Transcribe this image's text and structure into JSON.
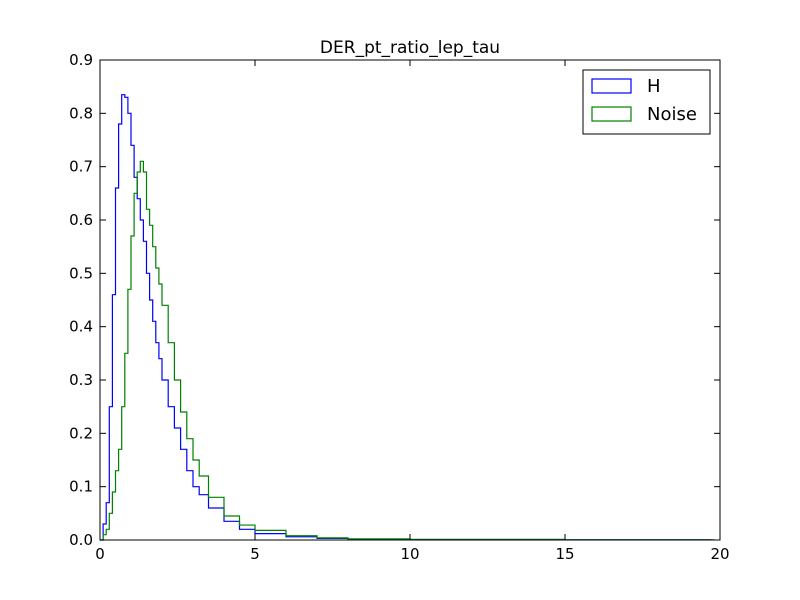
{
  "chart_data": {
    "type": "histogram-step",
    "title": "DER_pt_ratio_lep_tau",
    "xlabel": "",
    "ylabel": "",
    "xlim": [
      0,
      20
    ],
    "ylim": [
      0,
      0.9
    ],
    "xticks": [
      0,
      5,
      10,
      15,
      20
    ],
    "xtick_labels": [
      "0",
      "5",
      "10",
      "15",
      "20"
    ],
    "yticks": [
      0,
      0.1,
      0.2,
      0.3,
      0.4,
      0.5,
      0.6,
      0.7,
      0.8,
      0.9
    ],
    "ytick_labels": [
      "0.0",
      "0.1",
      "0.2",
      "0.3",
      "0.4",
      "0.5",
      "0.6",
      "0.7",
      "0.8",
      "0.9"
    ],
    "grid": false,
    "legend_position": "top-right",
    "series": [
      {
        "name": "H",
        "color": "#0000ff",
        "points": [
          [
            0,
            0
          ],
          [
            0.1,
            0.03
          ],
          [
            0.2,
            0.07
          ],
          [
            0.3,
            0.25
          ],
          [
            0.4,
            0.46
          ],
          [
            0.5,
            0.66
          ],
          [
            0.6,
            0.78
          ],
          [
            0.7,
            0.835
          ],
          [
            0.8,
            0.83
          ],
          [
            0.9,
            0.8
          ],
          [
            1.0,
            0.74
          ],
          [
            1.1,
            0.68
          ],
          [
            1.2,
            0.64
          ],
          [
            1.3,
            0.6
          ],
          [
            1.4,
            0.56
          ],
          [
            1.5,
            0.5
          ],
          [
            1.6,
            0.45
          ],
          [
            1.7,
            0.41
          ],
          [
            1.8,
            0.37
          ],
          [
            1.9,
            0.34
          ],
          [
            2.0,
            0.3
          ],
          [
            2.2,
            0.25
          ],
          [
            2.4,
            0.21
          ],
          [
            2.6,
            0.17
          ],
          [
            2.8,
            0.13
          ],
          [
            3.0,
            0.1
          ],
          [
            3.2,
            0.085
          ],
          [
            3.5,
            0.06
          ],
          [
            4.0,
            0.035
          ],
          [
            4.5,
            0.02
          ],
          [
            5,
            0.012
          ],
          [
            6,
            0.006
          ],
          [
            7,
            0.003
          ],
          [
            8,
            0.002
          ],
          [
            10,
            0.001
          ],
          [
            15,
            0.0003
          ],
          [
            19.7,
            0.0001
          ]
        ]
      },
      {
        "name": "Noise",
        "color": "#008000",
        "points": [
          [
            0,
            0
          ],
          [
            0.1,
            0.01
          ],
          [
            0.2,
            0.02
          ],
          [
            0.3,
            0.05
          ],
          [
            0.4,
            0.09
          ],
          [
            0.5,
            0.13
          ],
          [
            0.6,
            0.17
          ],
          [
            0.7,
            0.25
          ],
          [
            0.8,
            0.35
          ],
          [
            0.9,
            0.47
          ],
          [
            1.0,
            0.57
          ],
          [
            1.1,
            0.65
          ],
          [
            1.2,
            0.69
          ],
          [
            1.3,
            0.71
          ],
          [
            1.4,
            0.69
          ],
          [
            1.5,
            0.62
          ],
          [
            1.6,
            0.59
          ],
          [
            1.7,
            0.55
          ],
          [
            1.8,
            0.51
          ],
          [
            1.9,
            0.48
          ],
          [
            2.0,
            0.44
          ],
          [
            2.2,
            0.37
          ],
          [
            2.4,
            0.3
          ],
          [
            2.6,
            0.24
          ],
          [
            2.8,
            0.19
          ],
          [
            3.0,
            0.15
          ],
          [
            3.2,
            0.12
          ],
          [
            3.5,
            0.08
          ],
          [
            4.0,
            0.045
          ],
          [
            4.5,
            0.028
          ],
          [
            5,
            0.018
          ],
          [
            6,
            0.008
          ],
          [
            7,
            0.004
          ],
          [
            8,
            0.002
          ],
          [
            10,
            0.001
          ],
          [
            15,
            0.0003
          ],
          [
            19.7,
            0.0001
          ]
        ]
      }
    ]
  }
}
